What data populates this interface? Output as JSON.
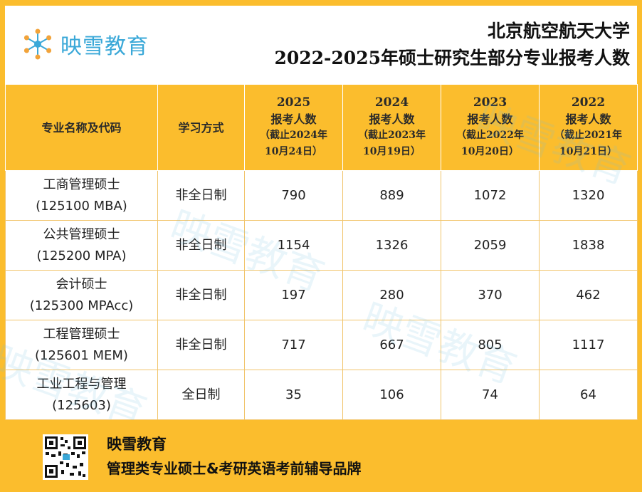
{
  "header": {
    "logo_text": "映雪教育",
    "logo_icon": "snowflake-icon",
    "title_line1": "北京航空航天大学",
    "title_line2": "2022-2025年硕士研究生部分专业报考人数"
  },
  "table": {
    "col_major": "专业名称及代码",
    "col_mode": "学习方式",
    "years": [
      {
        "year": "2025",
        "label": "报考人数",
        "cutoff": "（截止2024年",
        "date": "10月24日）"
      },
      {
        "year": "2024",
        "label": "报考人数",
        "cutoff": "（截止2023年",
        "date": "10月19日）"
      },
      {
        "year": "2023",
        "label": "报考人数",
        "cutoff": "（截止2022年",
        "date": "10月20日）"
      },
      {
        "year": "2022",
        "label": "报考人数",
        "cutoff": "（截止2021年",
        "date": "10月21日）"
      }
    ],
    "rows": [
      {
        "name": "工商管理硕士",
        "code": "(125100 MBA)",
        "mode": "非全日制",
        "v2025": "790",
        "v2024": "889",
        "v2023": "1072",
        "v2022": "1320"
      },
      {
        "name": "公共管理硕士",
        "code": "(125200 MPA)",
        "mode": "非全日制",
        "v2025": "1154",
        "v2024": "1326",
        "v2023": "2059",
        "v2022": "1838"
      },
      {
        "name": "会计硕士",
        "code": "(125300 MPAcc)",
        "mode": "非全日制",
        "v2025": "197",
        "v2024": "280",
        "v2023": "370",
        "v2022": "462"
      },
      {
        "name": "工程管理硕士",
        "code": "(125601 MEM)",
        "mode": "非全日制",
        "v2025": "717",
        "v2024": "667",
        "v2023": "805",
        "v2022": "1117"
      },
      {
        "name": "工业工程与管理",
        "code": "(125603)",
        "mode": "全日制",
        "v2025": "35",
        "v2024": "106",
        "v2023": "74",
        "v2022": "64"
      }
    ]
  },
  "footer": {
    "brand": "映雪教育",
    "slogan": "管理类专业硕士&考研英语考前辅导品牌",
    "qr_icon": "qr-code-icon"
  },
  "watermark": "映雪教育",
  "colors": {
    "frame": "#fbbd2d",
    "logo": "#3aa8d8"
  }
}
